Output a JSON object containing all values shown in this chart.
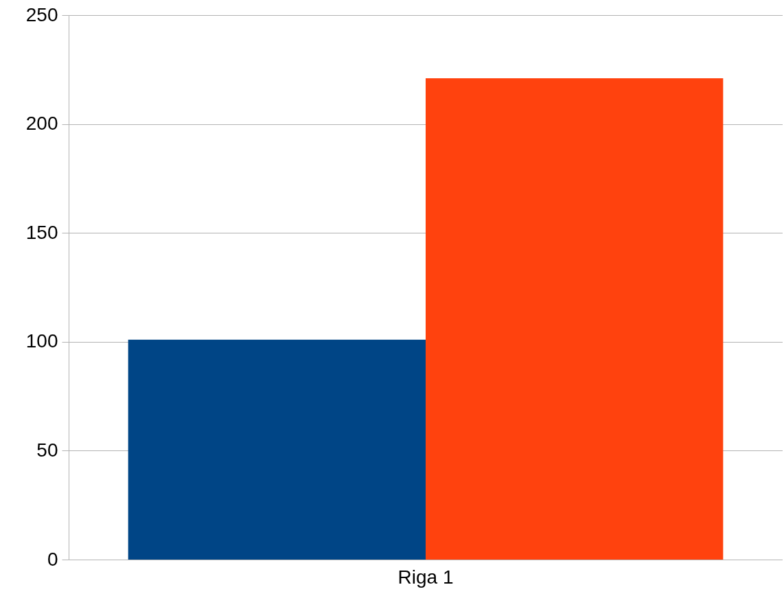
{
  "chart_data": {
    "type": "bar",
    "categories": [
      "Riga 1"
    ],
    "series": [
      {
        "color": "#004586",
        "values": [
          101
        ]
      },
      {
        "color": "#ff420e",
        "values": [
          221
        ]
      }
    ],
    "ylim": [
      0,
      250
    ],
    "yticks": [
      0,
      50,
      100,
      150,
      200,
      250
    ],
    "grid": "y"
  }
}
